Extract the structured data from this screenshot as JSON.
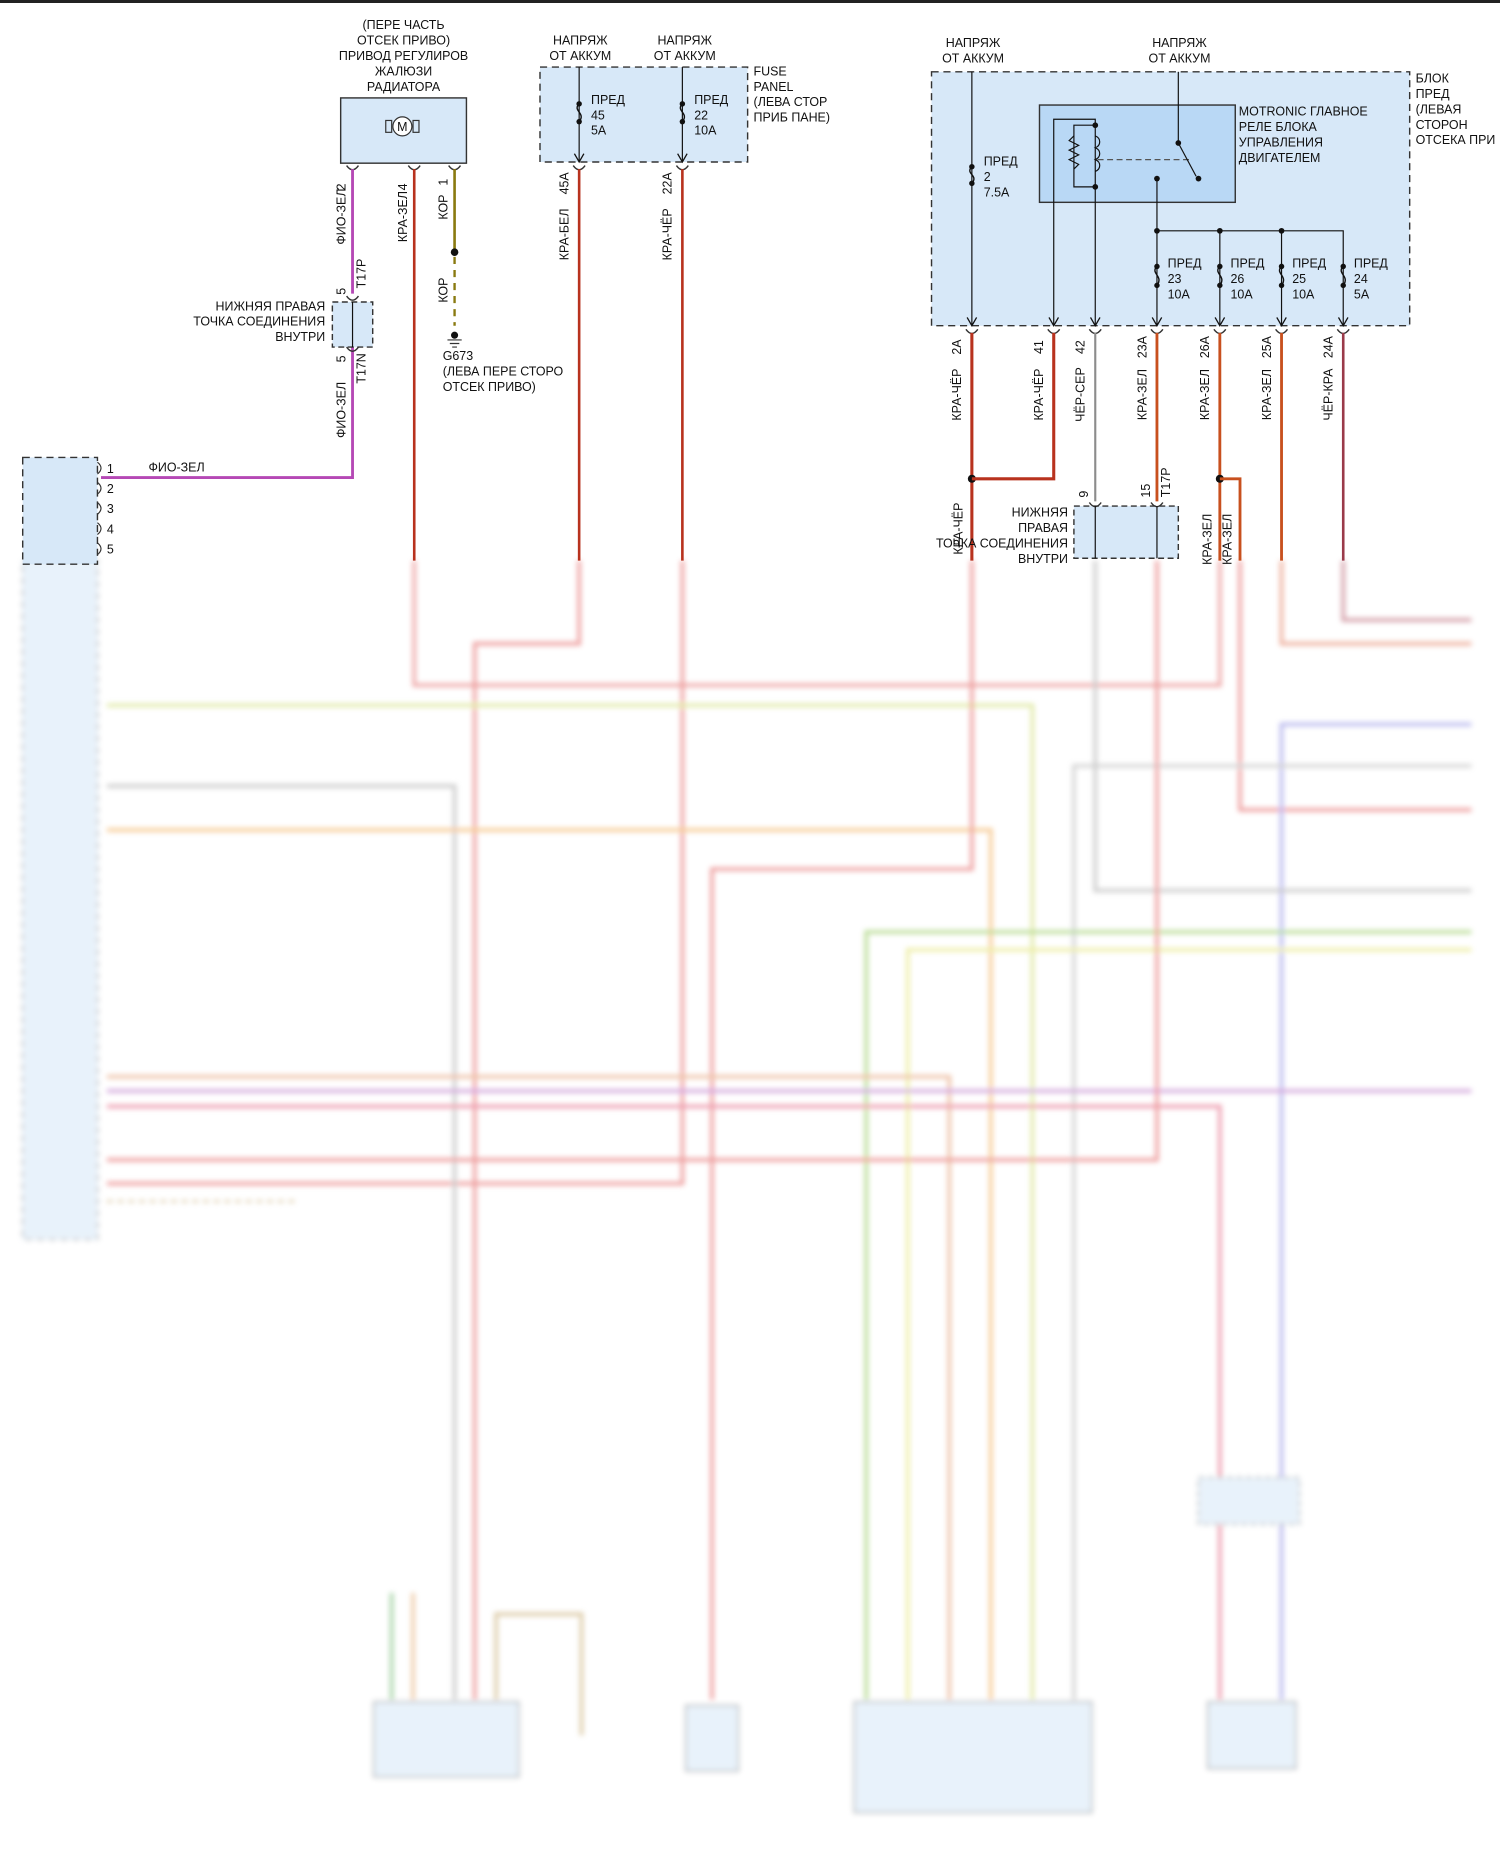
{
  "colors": {
    "block_fill": "#d7e8f8",
    "relay_fill": "#b9d8f5",
    "wire_red": "#b8321e",
    "wire_purple": "#b548b5",
    "wire_brown": "#8a7a10",
    "wire_gray": "#8c8c8c",
    "wire_orange": "#c8501e",
    "wire_darkred": "#9a3a4a"
  },
  "motor": {
    "title": [
      "(ПЕРЕ ЧАСТЬ",
      "ОТСЕК ПРИВО)",
      "ПРИВОД РЕГУЛИРОВ",
      "ЖАЛЮЗИ",
      "РАДИАТОРА"
    ],
    "icon": "motor-icon",
    "icon_letter": "M",
    "pins": [
      "2",
      "4",
      "1"
    ],
    "wires": [
      "ФИО-ЗЕЛ",
      "КРА-ЗЕЛ",
      "КОР"
    ]
  },
  "splice_left": {
    "label": [
      "НИЖНЯЯ ПРАВАЯ",
      "ТОЧКА СОЕДИНЕНИЯ",
      "ВНУТРИ"
    ],
    "pin_top": "5",
    "conn_top": "T17P",
    "pin_bottom": "5",
    "conn_bottom": "T17N",
    "wire_bottom": "ФИО-ЗЕЛ"
  },
  "ground": {
    "wire": "КОР",
    "label": [
      "G673",
      "(ЛЕВА ПЕРЕ СТОРО",
      "ОТСЕК ПРИВО)"
    ]
  },
  "fuse_panel": {
    "label": [
      "FUSE",
      "PANEL",
      "(ЛЕВА СТОР",
      "ПРИБ ПАНЕ)"
    ],
    "supply": [
      "НАПРЯЖ",
      "ОТ АККУМ"
    ],
    "fuses": [
      {
        "name": [
          "ПРЕД",
          "45",
          "5A"
        ],
        "pin": "45A",
        "wire": "КРА-БЕЛ"
      },
      {
        "name": [
          "ПРЕД",
          "22",
          "10A"
        ],
        "pin": "22A",
        "wire": "КРА-ЧЁР"
      }
    ]
  },
  "ecu": {
    "pins": [
      "1",
      "2",
      "3",
      "4",
      "5"
    ],
    "wire_pin1": "ФИО-ЗЕЛ"
  },
  "fuse_block": {
    "label": [
      "БЛОК",
      "ПРЕД",
      "(ЛЕВАЯ",
      "СТОРОН",
      "ОТСЕКА ПРИ"
    ],
    "supply_left": [
      "НАПРЯЖ",
      "ОТ АККУМ"
    ],
    "supply_relay": [
      "НАПРЯЖ",
      "ОТ АККУМ"
    ],
    "relay_label": [
      "MOTRONIC ГЛАВНОЕ",
      "РЕЛЕ БЛОКА",
      "УПРАВЛЕНИЯ",
      "ДВИГАТЕЛЕМ"
    ],
    "fuse_2": [
      "ПРЕД",
      "2",
      "7.5A"
    ],
    "fuses": [
      [
        "ПРЕД",
        "23",
        "10A"
      ],
      [
        "ПРЕД",
        "26",
        "10A"
      ],
      [
        "ПРЕД",
        "25",
        "10A"
      ],
      [
        "ПРЕД",
        "24",
        "5A"
      ]
    ],
    "outputs": [
      {
        "pin": "2A",
        "wire": "КРА-ЧЁР"
      },
      {
        "pin": "41",
        "wire": "КРА-ЧЁР"
      },
      {
        "pin": "42",
        "wire": "ЧЁР-СЕР"
      },
      {
        "pin": "23A",
        "wire": "КРА-ЗЕЛ"
      },
      {
        "pin": "26A",
        "wire": "КРА-ЗЕЛ"
      },
      {
        "pin": "25A",
        "wire": "КРА-ЗЕЛ"
      },
      {
        "pin": "24A",
        "wire": "ЧЁР-КРА"
      }
    ]
  },
  "splice_right": {
    "label": [
      "НИЖНЯЯ",
      "ПРАВАЯ",
      "ТОЧКА СОЕДИНЕНИЯ",
      "ВНУТРИ"
    ],
    "pin_a": "9",
    "pin_b": "15",
    "conn": "T17P",
    "wire_left": "КРА-ЧЁР",
    "wire_right_a": "КРА-ЗЕЛ",
    "wire_right_b": "КРА-ЗЕЛ"
  }
}
